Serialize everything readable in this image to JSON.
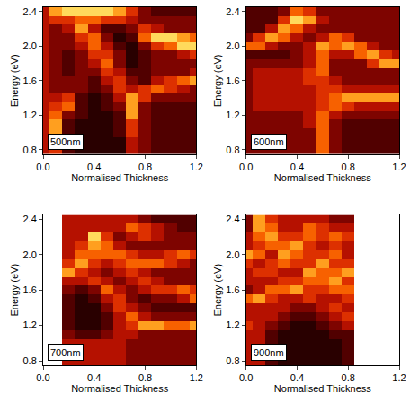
{
  "chart_data": [
    {
      "type": "heatmap",
      "annotation": "500nm",
      "x_label": "Normalised Thickness",
      "y_label": "Energy (eV)",
      "x": [
        0,
        0.1,
        0.2,
        0.3,
        0.4,
        0.5,
        0.6,
        0.7,
        0.8,
        0.9,
        1.0,
        1.1,
        1.2
      ],
      "y": [
        0.8,
        0.9,
        1.0,
        1.1,
        1.2,
        1.3,
        1.4,
        1.5,
        1.6,
        1.7,
        1.8,
        1.9,
        2.0,
        2.1,
        2.2,
        2.3,
        2.4
      ],
      "z": [
        [
          4,
          5,
          2,
          1,
          1,
          1,
          1,
          4,
          3,
          2,
          2,
          2,
          2
        ],
        [
          4,
          6,
          2,
          1,
          1,
          1,
          1,
          4,
          3,
          2,
          2,
          2,
          2
        ],
        [
          4,
          7,
          2,
          1,
          1,
          1,
          2,
          5,
          3,
          2,
          2,
          2,
          2
        ],
        [
          4,
          7,
          2,
          1,
          1,
          1,
          2,
          5,
          3,
          2,
          2,
          2,
          2
        ],
        [
          4,
          6,
          3,
          2,
          1,
          1,
          2,
          7,
          3,
          2,
          2,
          2,
          2
        ],
        [
          4,
          5,
          6,
          2,
          1,
          2,
          3,
          7,
          3,
          2,
          2,
          2,
          2
        ],
        [
          4,
          4,
          5,
          2,
          1,
          2,
          4,
          7,
          5,
          3,
          3,
          3,
          3
        ],
        [
          4,
          3,
          3,
          3,
          2,
          3,
          5,
          4,
          5,
          6,
          5,
          4,
          3
        ],
        [
          4,
          3,
          3,
          3,
          2,
          4,
          5,
          3,
          2,
          4,
          5,
          6,
          7
        ],
        [
          4,
          3,
          2,
          3,
          3,
          5,
          4,
          2,
          2,
          3,
          3,
          3,
          4
        ],
        [
          4,
          3,
          2,
          3,
          4,
          6,
          3,
          1,
          2,
          3,
          3,
          3,
          3
        ],
        [
          4,
          3,
          2,
          3,
          5,
          5,
          3,
          1,
          2,
          3,
          3,
          4,
          5
        ],
        [
          4,
          3,
          3,
          4,
          6,
          4,
          2,
          1,
          3,
          5,
          6,
          8,
          8
        ],
        [
          4,
          3,
          3,
          5,
          6,
          3,
          1,
          2,
          6,
          8,
          8,
          7,
          6
        ],
        [
          4,
          3,
          4,
          7,
          4,
          2,
          2,
          3,
          5,
          4,
          3,
          3,
          3
        ],
        [
          4,
          5,
          5,
          6,
          6,
          5,
          5,
          4,
          3,
          3,
          3,
          3,
          3
        ],
        [
          4,
          7,
          8,
          8,
          8,
          8,
          7,
          5,
          3,
          2,
          2,
          2,
          2
        ]
      ],
      "zlim": [
        0,
        9
      ],
      "xlim": [
        0,
        1.2
      ],
      "ylim": [
        0.75,
        2.45
      ],
      "xticks": [
        {
          "value": 0,
          "label": "0.0"
        },
        0.4,
        0.8,
        1.2
      ],
      "yticks": [
        0.8,
        1.2,
        1.6,
        {
          "value": 2,
          "label": "2.0"
        },
        2.4
      ]
    },
    {
      "type": "heatmap",
      "annotation": "600nm",
      "x_label": "Normalised Thickness",
      "y_label": "Energy (eV)",
      "x": [
        0,
        0.1,
        0.2,
        0.3,
        0.4,
        0.5,
        0.6,
        0.7,
        0.8,
        0.9,
        1.0,
        1.1,
        1.2
      ],
      "y": [
        0.8,
        0.9,
        1.0,
        1.1,
        1.2,
        1.3,
        1.4,
        1.5,
        1.6,
        1.7,
        1.8,
        1.9,
        2.0,
        2.1,
        2.2,
        2.3,
        2.4
      ],
      "z": [
        [
          3,
          3,
          3,
          3,
          3,
          3,
          6,
          3,
          2,
          2,
          2,
          2,
          2
        ],
        [
          3,
          3,
          3,
          3,
          3,
          3,
          6,
          3,
          2,
          2,
          2,
          2,
          2
        ],
        [
          3,
          3,
          3,
          3,
          3,
          3,
          6,
          3,
          2,
          2,
          2,
          2,
          2
        ],
        [
          3,
          3,
          3,
          3,
          3,
          4,
          6,
          3,
          2,
          2,
          2,
          2,
          2
        ],
        [
          3,
          3,
          3,
          3,
          3,
          4,
          6,
          4,
          3,
          3,
          3,
          3,
          3
        ],
        [
          3,
          4,
          4,
          4,
          4,
          4,
          5,
          6,
          5,
          4,
          4,
          4,
          4
        ],
        [
          3,
          4,
          4,
          4,
          4,
          4,
          5,
          6,
          7,
          7,
          7,
          7,
          7
        ],
        [
          3,
          4,
          4,
          4,
          4,
          4,
          5,
          5,
          4,
          4,
          4,
          4,
          4
        ],
        [
          3,
          4,
          4,
          4,
          4,
          5,
          5,
          4,
          3,
          3,
          3,
          3,
          3
        ],
        [
          3,
          4,
          4,
          4,
          4,
          5,
          6,
          3,
          3,
          3,
          3,
          3,
          3
        ],
        [
          3,
          3,
          3,
          3,
          3,
          4,
          6,
          3,
          3,
          3,
          5,
          7,
          7
        ],
        [
          2,
          2,
          2,
          2,
          3,
          4,
          6,
          4,
          4,
          6,
          7,
          5,
          4
        ],
        [
          6,
          6,
          4,
          3,
          3,
          4,
          7,
          6,
          7,
          6,
          4,
          3,
          3
        ],
        [
          3,
          5,
          7,
          6,
          4,
          3,
          4,
          6,
          5,
          3,
          3,
          3,
          3
        ],
        [
          2,
          2,
          4,
          7,
          6,
          4,
          3,
          3,
          3,
          3,
          3,
          3,
          3
        ],
        [
          2,
          2,
          2,
          5,
          8,
          7,
          4,
          3,
          3,
          3,
          3,
          3,
          3
        ],
        [
          2,
          2,
          2,
          3,
          6,
          5,
          3,
          3,
          3,
          3,
          3,
          3,
          3
        ]
      ],
      "zlim": [
        0,
        9
      ],
      "xlim": [
        0,
        1.2
      ],
      "ylim": [
        0.75,
        2.45
      ],
      "xticks": [
        {
          "value": 0,
          "label": "0.0"
        },
        0.4,
        0.8,
        1.2
      ],
      "yticks": [
        0.8,
        1.2,
        1.6,
        {
          "value": 2,
          "label": "2.0"
        },
        2.4
      ]
    },
    {
      "type": "heatmap",
      "annotation": "700nm",
      "x_label": "Normalised Thickness",
      "y_label": "Energy (eV)",
      "x": [
        0,
        0.1,
        0.2,
        0.3,
        0.4,
        0.5,
        0.6,
        0.7,
        0.8,
        0.9,
        1.0,
        1.1,
        1.2
      ],
      "y": [
        0.8,
        0.9,
        1.0,
        1.1,
        1.2,
        1.3,
        1.4,
        1.5,
        1.6,
        1.7,
        1.8,
        1.9,
        2.0,
        2.1,
        2.2,
        2.3,
        2.4
      ],
      "z": [
        [
          null,
          null,
          4,
          4,
          4,
          4,
          4,
          3,
          3,
          3,
          3,
          3,
          3
        ],
        [
          null,
          null,
          4,
          4,
          4,
          4,
          4,
          3,
          3,
          3,
          3,
          3,
          3
        ],
        [
          null,
          null,
          4,
          4,
          4,
          4,
          4,
          3,
          3,
          3,
          3,
          3,
          3
        ],
        [
          null,
          null,
          3,
          2,
          2,
          3,
          4,
          4,
          3,
          3,
          3,
          3,
          3
        ],
        [
          null,
          null,
          2,
          1,
          1,
          2,
          4,
          5,
          7,
          7,
          6,
          6,
          7
        ],
        [
          null,
          null,
          2,
          1,
          1,
          2,
          4,
          6,
          4,
          3,
          3,
          3,
          3
        ],
        [
          null,
          null,
          2,
          1,
          1,
          3,
          5,
          4,
          3,
          2,
          2,
          2,
          2
        ],
        [
          null,
          null,
          2,
          1,
          2,
          4,
          5,
          3,
          2,
          3,
          3,
          4,
          6
        ],
        [
          null,
          null,
          3,
          2,
          3,
          6,
          4,
          3,
          4,
          5,
          5,
          6,
          5
        ],
        [
          null,
          null,
          4,
          4,
          5,
          4,
          3,
          4,
          5,
          4,
          3,
          3,
          3
        ],
        [
          null,
          null,
          7,
          5,
          4,
          3,
          4,
          5,
          4,
          3,
          3,
          3,
          3
        ],
        [
          null,
          null,
          5,
          7,
          5,
          4,
          5,
          6,
          6,
          6,
          5,
          4,
          3
        ],
        [
          null,
          null,
          4,
          6,
          6,
          6,
          6,
          5,
          4,
          4,
          5,
          6,
          5
        ],
        [
          null,
          null,
          4,
          5,
          7,
          6,
          4,
          3,
          3,
          3,
          3,
          3,
          3
        ],
        [
          null,
          null,
          4,
          4,
          8,
          5,
          3,
          4,
          5,
          4,
          3,
          3,
          3
        ],
        [
          null,
          null,
          4,
          4,
          4,
          4,
          4,
          6,
          5,
          4,
          3,
          2,
          2
        ],
        [
          null,
          null,
          4,
          4,
          4,
          4,
          4,
          4,
          3,
          2,
          2,
          2,
          2
        ]
      ],
      "zlim": [
        0,
        9
      ],
      "xlim": [
        0,
        1.2
      ],
      "ylim": [
        0.75,
        2.45
      ],
      "xticks": [
        {
          "value": 0,
          "label": "0.0"
        },
        0.4,
        0.8,
        1.2
      ],
      "yticks": [
        0.8,
        1.2,
        1.6,
        {
          "value": 2,
          "label": "2.0"
        },
        2.4
      ]
    },
    {
      "type": "heatmap",
      "annotation": "900nm",
      "x_label": "Normalised Thickness",
      "y_label": "Energy (eV)",
      "x": [
        0,
        0.1,
        0.2,
        0.3,
        0.4,
        0.5,
        0.6,
        0.7,
        0.8,
        0.9,
        1.0,
        1.1,
        1.2
      ],
      "y": [
        0.8,
        0.9,
        1.0,
        1.1,
        1.2,
        1.3,
        1.4,
        1.5,
        1.6,
        1.7,
        1.8,
        1.9,
        2.0,
        2.1,
        2.2,
        2.3,
        2.4
      ],
      "z": [
        [
          4,
          4,
          2,
          1,
          1,
          1,
          1,
          1,
          2,
          null,
          null,
          null,
          null
        ],
        [
          4,
          4,
          2,
          1,
          1,
          1,
          1,
          1,
          2,
          null,
          null,
          null,
          null
        ],
        [
          4,
          4,
          2,
          1,
          1,
          1,
          1,
          1,
          2,
          null,
          null,
          null,
          null
        ],
        [
          4,
          4,
          2,
          1,
          1,
          1,
          1,
          2,
          2,
          null,
          null,
          null,
          null
        ],
        [
          5,
          4,
          3,
          2,
          1,
          1,
          2,
          3,
          4,
          null,
          null,
          null,
          null
        ],
        [
          4,
          4,
          4,
          3,
          2,
          2,
          3,
          4,
          5,
          null,
          null,
          null,
          null
        ],
        [
          4,
          4,
          4,
          4,
          3,
          3,
          4,
          5,
          4,
          null,
          null,
          null,
          null
        ],
        [
          6,
          7,
          5,
          4,
          4,
          5,
          4,
          4,
          5,
          null,
          null,
          null,
          null
        ],
        [
          3,
          4,
          6,
          6,
          7,
          5,
          5,
          6,
          6,
          null,
          null,
          null,
          null
        ],
        [
          4,
          4,
          4,
          5,
          5,
          6,
          6,
          7,
          5,
          null,
          null,
          null,
          null
        ],
        [
          4,
          5,
          5,
          4,
          4,
          7,
          6,
          6,
          7,
          null,
          null,
          null,
          null
        ],
        [
          5,
          4,
          5,
          6,
          5,
          5,
          7,
          5,
          5,
          null,
          null,
          null,
          null
        ],
        [
          7,
          6,
          4,
          7,
          6,
          5,
          5,
          6,
          4,
          null,
          null,
          null,
          null
        ],
        [
          4,
          5,
          6,
          6,
          7,
          5,
          4,
          5,
          4,
          null,
          null,
          null,
          null
        ],
        [
          4,
          6,
          7,
          5,
          5,
          6,
          5,
          6,
          5,
          null,
          null,
          null,
          null
        ],
        [
          3,
          7,
          6,
          4,
          4,
          6,
          5,
          4,
          4,
          null,
          null,
          null,
          null
        ],
        [
          3,
          7,
          5,
          4,
          4,
          4,
          4,
          3,
          3,
          null,
          null,
          null,
          null
        ]
      ],
      "zlim": [
        0,
        9
      ],
      "xlim": [
        0,
        1.2
      ],
      "ylim": [
        0.75,
        2.45
      ],
      "xticks": [
        {
          "value": 0,
          "label": "0.0"
        },
        0.4,
        0.8,
        1.2
      ],
      "yticks": [
        0.8,
        1.2,
        1.6,
        {
          "value": 2,
          "label": "2.0"
        },
        2.4
      ]
    }
  ]
}
